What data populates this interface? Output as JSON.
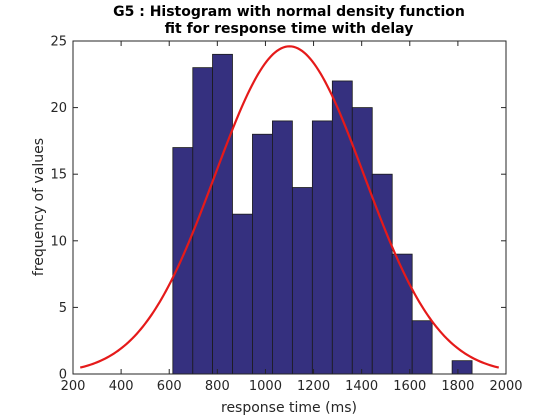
{
  "chart_data": {
    "type": "bar",
    "title_line1": "G5 : Histogram with normal density function",
    "title_line2": "fit for response time with delay",
    "xlabel": "response time (ms)",
    "ylabel": "frequency of values",
    "xlim": [
      200,
      2000
    ],
    "ylim": [
      0,
      25
    ],
    "xticks": [
      200,
      400,
      600,
      800,
      1000,
      1200,
      1400,
      1600,
      1800,
      2000
    ],
    "yticks": [
      0,
      5,
      10,
      15,
      20,
      25
    ],
    "grid": false,
    "bin_edges": [
      615,
      698,
      780,
      863,
      946,
      1029,
      1112,
      1195,
      1278,
      1361,
      1444,
      1527,
      1610,
      1693,
      1776,
      1859
    ],
    "values": [
      17,
      23,
      24,
      12,
      18,
      19,
      14,
      19,
      22,
      20,
      15,
      9,
      4,
      0,
      1
    ],
    "bar_color": "#35307f",
    "bar_edge_color": "#1a1a1a",
    "fit": {
      "name": "normal density function fit",
      "mean": 1100,
      "std": 310,
      "peak": 24.6,
      "x_range": [
        230,
        1970
      ],
      "color": "#e51a1a"
    }
  }
}
